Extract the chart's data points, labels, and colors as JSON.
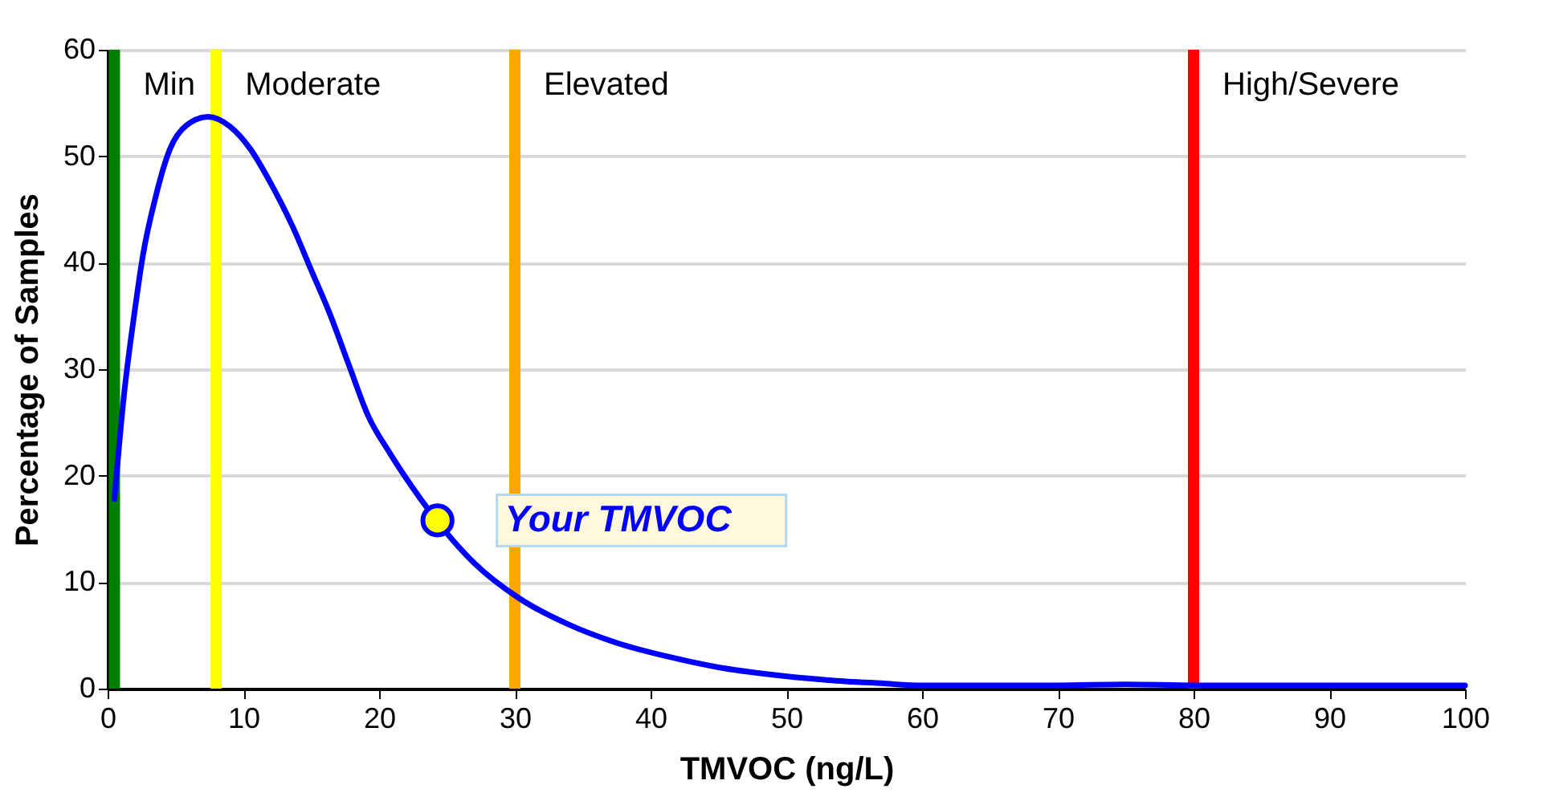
{
  "chart_data": {
    "type": "line",
    "xlabel": "TMVOC (ng/L)",
    "ylabel": "Percentage of Samples",
    "xlim": [
      0,
      100
    ],
    "xticks": [
      0,
      10,
      20,
      30,
      40,
      50,
      60,
      70,
      80,
      90,
      100
    ],
    "ylim": [
      0,
      60
    ],
    "yticks": [
      0,
      10,
      20,
      30,
      40,
      50,
      60
    ],
    "grid": "y",
    "series": [
      {
        "color": "#0000ff",
        "x": [
          0.5,
          1.2,
          2.0,
          2.6,
          3.5,
          4.6,
          5.8,
          7.4,
          9.0,
          10.5,
          12.0,
          13.7,
          15.0,
          16.4,
          17.8,
          19.2,
          20.8,
          22.4,
          27.0,
          30.3,
          34.0,
          37.5,
          41.3,
          45.0,
          49.0,
          53.1,
          57.0,
          60.0,
          65.0,
          70.0,
          75.0,
          80.0,
          85.0,
          90.0,
          95.0,
          100.0
        ],
        "values": [
          17.8,
          27.5,
          35.5,
          40.7,
          46.0,
          50.7,
          52.9,
          53.7,
          52.8,
          50.7,
          47.5,
          43.2,
          39.3,
          35.1,
          30.3,
          25.6,
          22.1,
          19.0,
          11.8,
          8.5,
          6.0,
          4.3,
          3.0,
          2.0,
          1.3,
          0.8,
          0.5,
          0.3,
          0.3,
          0.3,
          0.4,
          0.3,
          0.3,
          0.3,
          0.3,
          0.3
        ]
      },
      {
        "type": "scatter",
        "color": "#ffff00",
        "x": [
          24.3
        ],
        "values": [
          15.8
        ]
      }
    ],
    "ref_lines": [
      {
        "axis": "x",
        "value": 0.5,
        "label": "Min",
        "color": "#007f00"
      },
      {
        "axis": "x",
        "value": 8,
        "label": "Moderate",
        "color": "#ffff00"
      },
      {
        "axis": "x",
        "value": 30,
        "label": "Elevated",
        "color": "#ffa500"
      },
      {
        "axis": "x",
        "value": 80,
        "label": "High/Severe",
        "color": "#ff0000"
      }
    ],
    "annotations": [
      {
        "text": "Your TMVOC",
        "x": 24.3,
        "y": 15.8
      }
    ]
  }
}
